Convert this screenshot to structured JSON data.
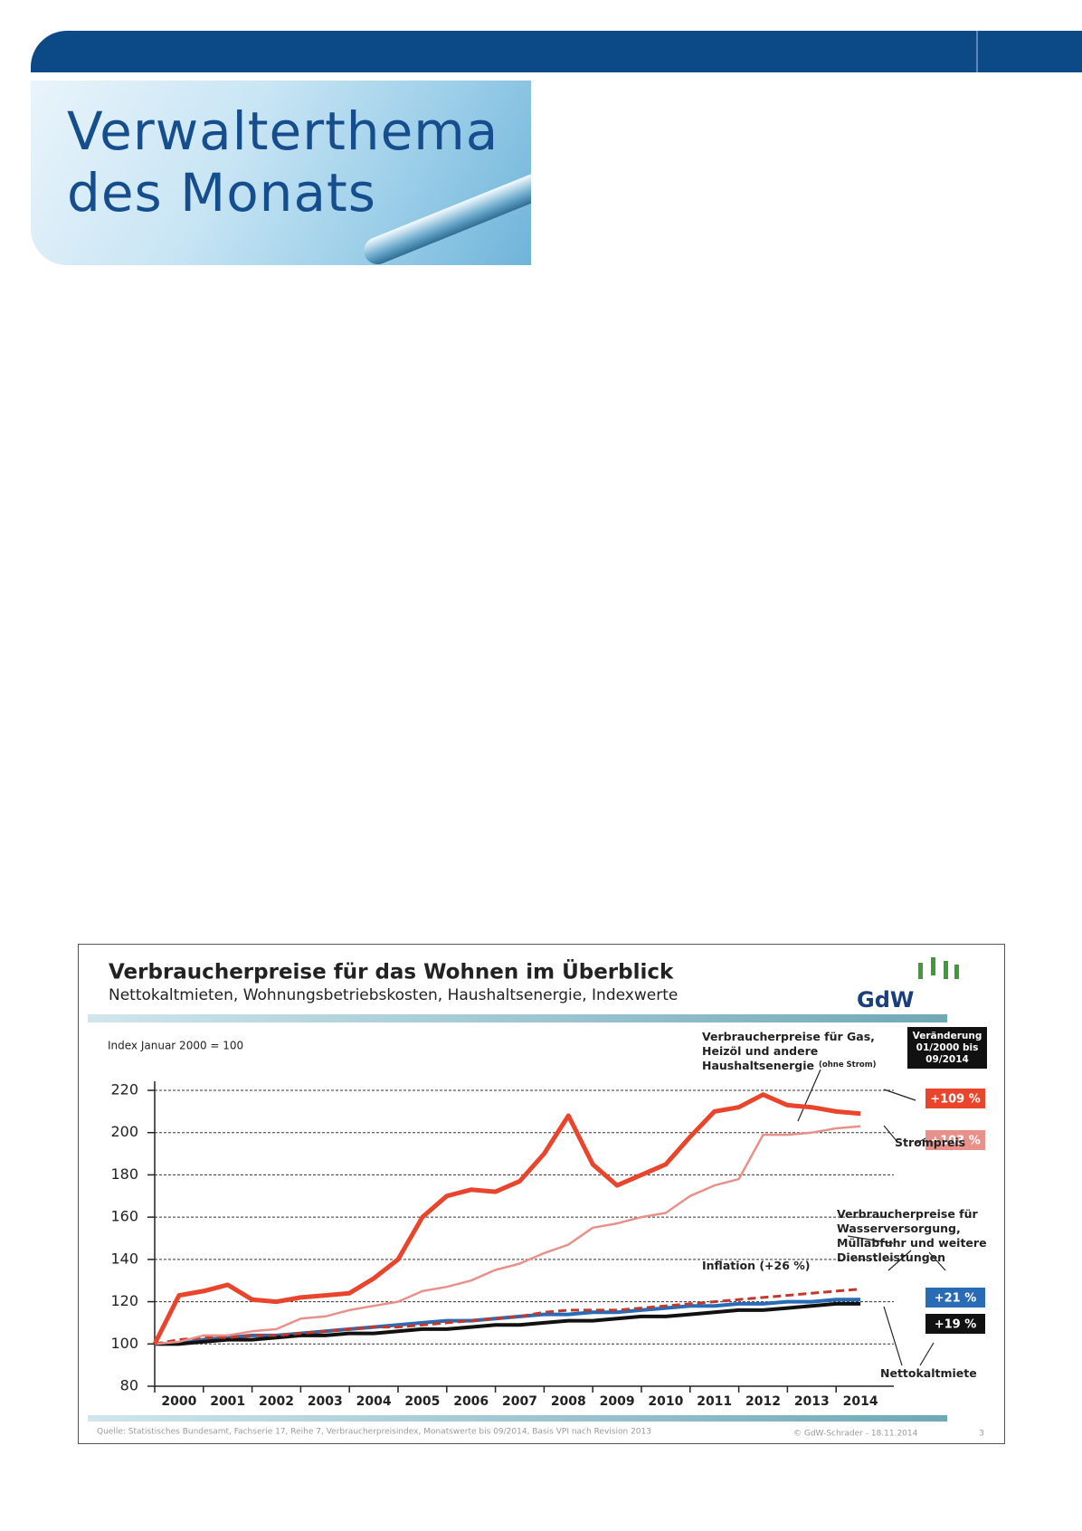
{
  "banner": {
    "line1": "Verwalterthema",
    "line2": "des Monats"
  },
  "chart_data": {
    "type": "line",
    "title": "Verbraucherpreise für das Wohnen im Überblick",
    "subtitle": "Nettokaltmieten, Wohnungsbetriebskosten, Haushaltsenergie, Indexwerte",
    "index_note": "Index  Januar 2000 = 100",
    "logo": "GdW",
    "change_box": [
      "Veränderung",
      "01/2000 bis",
      "09/2014"
    ],
    "gas_note": "(ohne Strom)",
    "source": "Quelle: Statistisches Bundesamt, Fachserie 17, Reihe 7, Verbraucherpreisindex, Monatswerte bis 09/2014, Basis VPI nach Revision 2013",
    "copyright": "© GdW-Schrader - 18.11.2014",
    "page": "3",
    "categories": [
      "2000",
      null,
      "2001",
      null,
      "2002",
      null,
      "2003",
      null,
      "2004",
      null,
      "2005",
      null,
      "2006",
      null,
      "2007",
      null,
      "2008",
      null,
      "2009",
      null,
      "2010",
      null,
      "2011",
      null,
      "2012",
      null,
      "2013",
      null,
      "2014",
      null
    ],
    "ylim": [
      80,
      220
    ],
    "yticks": [
      80,
      100,
      120,
      140,
      160,
      180,
      200,
      220
    ],
    "grid": true,
    "series": [
      {
        "name": "Verbraucherpreise für Gas, Heizöl und andere Haushaltsenergie",
        "color": "#e8452c",
        "change": "+109 %",
        "values": [
          100,
          123,
          125,
          128,
          121,
          120,
          122,
          123,
          124,
          131,
          140,
          160,
          170,
          173,
          172,
          177,
          190,
          208,
          185,
          175,
          180,
          185,
          198,
          210,
          212,
          218,
          213,
          212,
          210,
          209
        ]
      },
      {
        "name": "Strompreis",
        "color": "#e8908a",
        "change": "+103 %",
        "values": [
          100,
          101,
          104,
          104,
          106,
          107,
          112,
          113,
          116,
          118,
          120,
          125,
          127,
          130,
          135,
          138,
          143,
          147,
          155,
          157,
          160,
          162,
          170,
          175,
          178,
          199,
          199,
          200,
          202,
          203
        ]
      },
      {
        "name": "Verbraucherpreise für Wasserversorgung, Müllabfuhr und weitere Dienstleistungen",
        "color": "#2a6bb5",
        "change": "+21 %",
        "values": [
          100,
          100,
          102,
          103,
          104,
          104,
          105,
          106,
          107,
          108,
          109,
          110,
          111,
          111,
          112,
          113,
          114,
          114,
          115,
          115,
          116,
          117,
          118,
          118,
          119,
          119,
          120,
          120,
          121,
          121
        ]
      },
      {
        "name": "Inflation (+26 %)",
        "color": "#c0392b",
        "dashed": true,
        "values": [
          100,
          102,
          103,
          103,
          104,
          104,
          105,
          106,
          107,
          108,
          108,
          109,
          110,
          111,
          112,
          113,
          115,
          116,
          116,
          116,
          117,
          118,
          119,
          120,
          121,
          122,
          123,
          124,
          125,
          126
        ]
      },
      {
        "name": "Nettokaltmiete",
        "color": "#111111",
        "change": "+19 %",
        "values": [
          100,
          100,
          101,
          102,
          102,
          103,
          104,
          104,
          105,
          105,
          106,
          107,
          107,
          108,
          109,
          109,
          110,
          111,
          111,
          112,
          113,
          113,
          114,
          115,
          116,
          116,
          117,
          118,
          119,
          119
        ]
      }
    ]
  }
}
